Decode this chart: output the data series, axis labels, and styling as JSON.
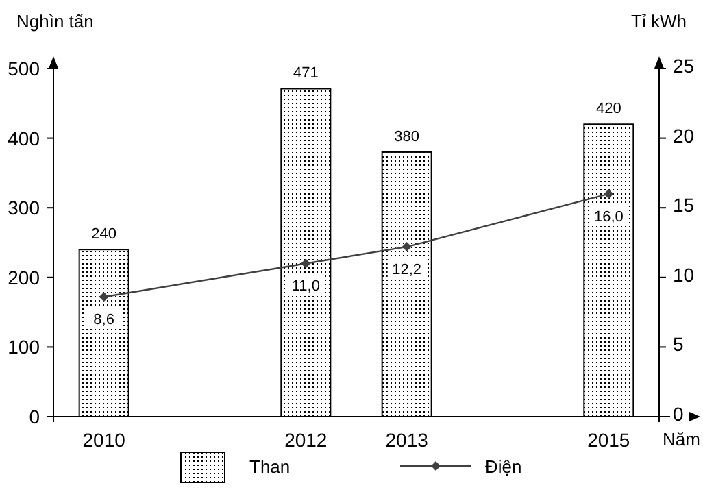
{
  "chart_data": {
    "type": "bar",
    "xlabel": "Năm",
    "ylabel": "Nghìn tấn",
    "y2label": "Tỉ kWh",
    "x": [
      2010,
      2012,
      2013,
      2015
    ],
    "xlim": [
      2009.5,
      2015.5
    ],
    "xticks": [
      2010,
      2012,
      2013,
      2015
    ],
    "ylim": [
      0,
      500
    ],
    "yticks": [
      0,
      100,
      200,
      300,
      400,
      500
    ],
    "y2lim": [
      0,
      25
    ],
    "y2ticks": [
      0,
      5,
      10,
      15,
      20,
      25
    ],
    "series": [
      {
        "name": "Than",
        "color": "#000000",
        "values": [
          240,
          471,
          380,
          420
        ],
        "value_labels": [
          "240",
          "471",
          "380",
          "420"
        ]
      },
      {
        "name": "Điện",
        "type": "line",
        "axis": "y2",
        "color": "#404040",
        "marker": "diamond",
        "values": [
          8.6,
          11.0,
          12.2,
          16.0
        ],
        "value_labels": [
          "8,6",
          "11,0",
          "12,2",
          "16,0"
        ]
      }
    ],
    "legend": "bottom",
    "grid": false
  }
}
